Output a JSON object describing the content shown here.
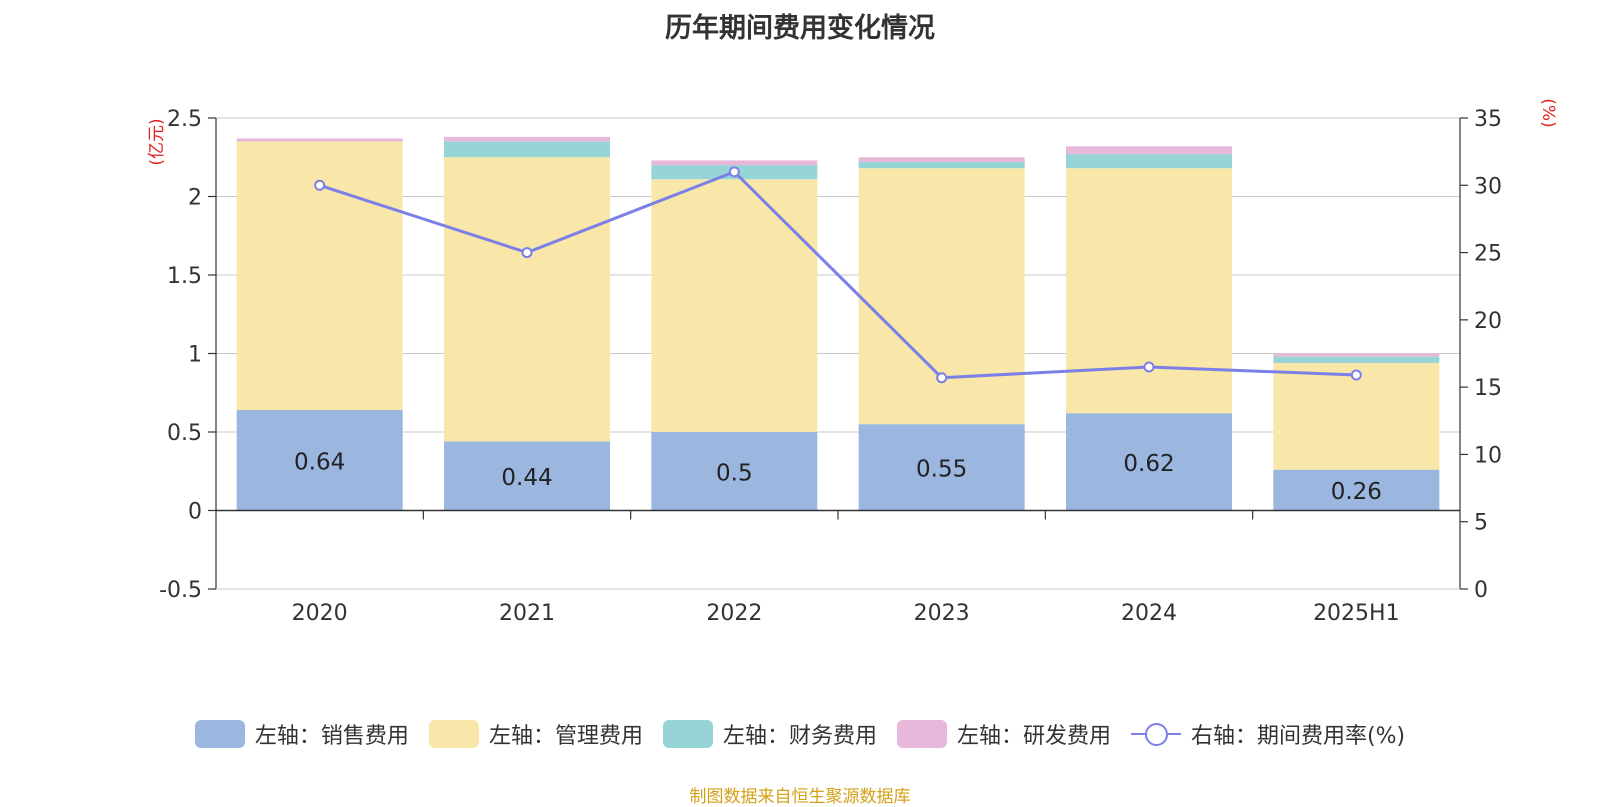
{
  "chart_data": {
    "type": "bar",
    "stacked": true,
    "title": "历年期间费用变化情况",
    "categories": [
      "2020",
      "2021",
      "2022",
      "2023",
      "2024",
      "2025H1"
    ],
    "left_axis": {
      "unit_label": "(亿元)",
      "ylim": [
        -0.5,
        2.5
      ],
      "ticks": [
        "2.5",
        "2",
        "1.5",
        "1",
        "0.5",
        "0",
        "-0.5"
      ]
    },
    "right_axis": {
      "unit_label": "(%)",
      "ylim": [
        0,
        35
      ],
      "ticks": [
        "35",
        "30",
        "25",
        "20",
        "15",
        "10",
        "5",
        "0"
      ]
    },
    "series": [
      {
        "name": "左轴：销售费用",
        "axis": "left",
        "kind": "bar",
        "color": "#9bb7e0",
        "values": [
          0.64,
          0.44,
          0.5,
          0.55,
          0.62,
          0.26
        ],
        "data_labels": [
          "0.64",
          "0.44",
          "0.5",
          "0.55",
          "0.62",
          "0.26"
        ]
      },
      {
        "name": "左轴：管理费用",
        "axis": "left",
        "kind": "bar",
        "color": "#f8e7a8",
        "values": [
          1.71,
          1.81,
          1.61,
          1.63,
          1.56,
          0.68
        ]
      },
      {
        "name": "左轴：财务费用",
        "axis": "left",
        "kind": "bar",
        "color": "#96d4d6",
        "values": [
          0.0,
          0.1,
          0.09,
          0.04,
          0.09,
          0.04
        ]
      },
      {
        "name": "左轴：研发费用",
        "axis": "left",
        "kind": "bar",
        "color": "#e8b8da",
        "values": [
          0.02,
          0.03,
          0.03,
          0.03,
          0.05,
          0.02
        ]
      },
      {
        "name": "右轴：期间费用率(%)",
        "axis": "right",
        "kind": "line",
        "color": "#7b7fe8",
        "values": [
          30.0,
          25.0,
          31.0,
          15.7,
          16.5,
          15.9
        ]
      }
    ],
    "grid": true,
    "legend_position": "bottom"
  },
  "source_note": "制图数据来自恒生聚源数据库"
}
